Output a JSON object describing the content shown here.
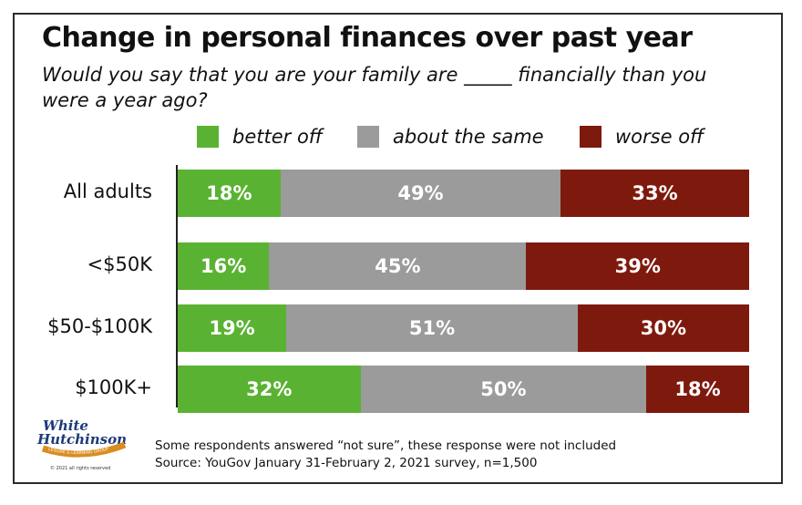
{
  "title": "Change in personal finances over past year",
  "subtitle": "Would you say that you are your family are _____ financially than you were a year ago?",
  "legend": [
    {
      "label": "better off",
      "color": "#5ab232"
    },
    {
      "label": "about the same",
      "color": "#9b9b9b"
    },
    {
      "label": "worse off",
      "color": "#7e1a0d"
    }
  ],
  "chart_data": {
    "type": "bar",
    "orientation": "horizontal",
    "stacked": true,
    "categories": [
      "All adults",
      "<$50K",
      "$50-$100K",
      "$100K+"
    ],
    "series": [
      {
        "name": "better off",
        "values": [
          18,
          16,
          19,
          32
        ],
        "labels": [
          "18%",
          "16%",
          "19%",
          "32%"
        ]
      },
      {
        "name": "about the same",
        "values": [
          49,
          45,
          51,
          50
        ],
        "labels": [
          "49%",
          "45%",
          "51%",
          "50%"
        ]
      },
      {
        "name": "worse off",
        "values": [
          33,
          39,
          30,
          18
        ],
        "labels": [
          "33%",
          "39%",
          "30%",
          "18%"
        ]
      }
    ],
    "xlim": [
      0,
      100
    ]
  },
  "footnote": {
    "line1": "Some respondents answered “not sure”, these response were not included",
    "line2": "Source: YouGov January 31-February 2, 2021 survey, n=1,500"
  },
  "logo": {
    "line1": "White",
    "line2": "Hutchinson",
    "arc": "LEISURE & LEARNING GROUP",
    "copyright": "© 2021 all rights reserved"
  }
}
